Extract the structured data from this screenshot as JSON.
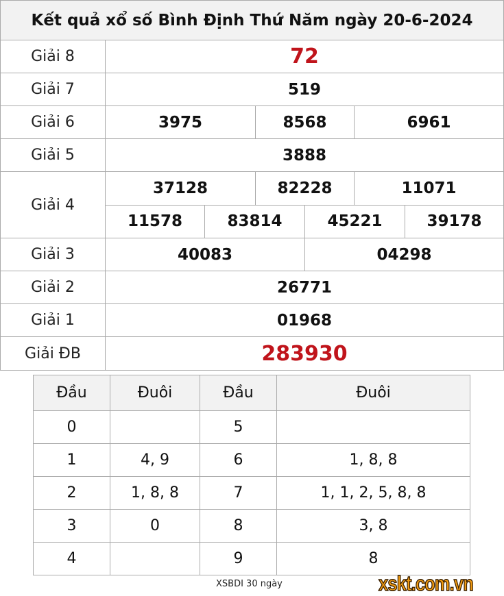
{
  "title": "Kết quả xổ số Bình Định Thứ Năm ngày 20-6-2024",
  "prizes": [
    {
      "label": "Giải 8",
      "values": [
        "72"
      ]
    },
    {
      "label": "Giải 7",
      "values": [
        "519"
      ]
    },
    {
      "label": "Giải 6",
      "values": [
        "3975",
        "8568",
        "6961"
      ]
    },
    {
      "label": "Giải 5",
      "values": [
        "3888"
      ]
    },
    {
      "label": "Giải 4",
      "values": [
        "37128",
        "82228",
        "11071",
        "11578",
        "83814",
        "45221",
        "39178"
      ]
    },
    {
      "label": "Giải 3",
      "values": [
        "40083",
        "04298"
      ]
    },
    {
      "label": "Giải 2",
      "values": [
        "26771"
      ]
    },
    {
      "label": "Giải 1",
      "values": [
        "01968"
      ]
    },
    {
      "label": "Giải ĐB",
      "values": [
        "283930"
      ]
    }
  ],
  "loto": {
    "headers": [
      "Đầu",
      "Đuôi",
      "Đầu",
      "Đuôi"
    ],
    "rows": [
      [
        "0",
        "",
        "5",
        ""
      ],
      [
        "1",
        "4, 9",
        "6",
        "1, 8, 8"
      ],
      [
        "2",
        "1, 8, 8",
        "7",
        "1, 1, 2, 5, 8, 8"
      ],
      [
        "3",
        "0",
        "8",
        "3, 8"
      ],
      [
        "4",
        "",
        "9",
        "8"
      ]
    ]
  },
  "footer": "XSBDI 30 ngày",
  "logo": "xskt.com.vn",
  "colors": {
    "highlight": "#c0141b",
    "logo": "#f39c12"
  }
}
